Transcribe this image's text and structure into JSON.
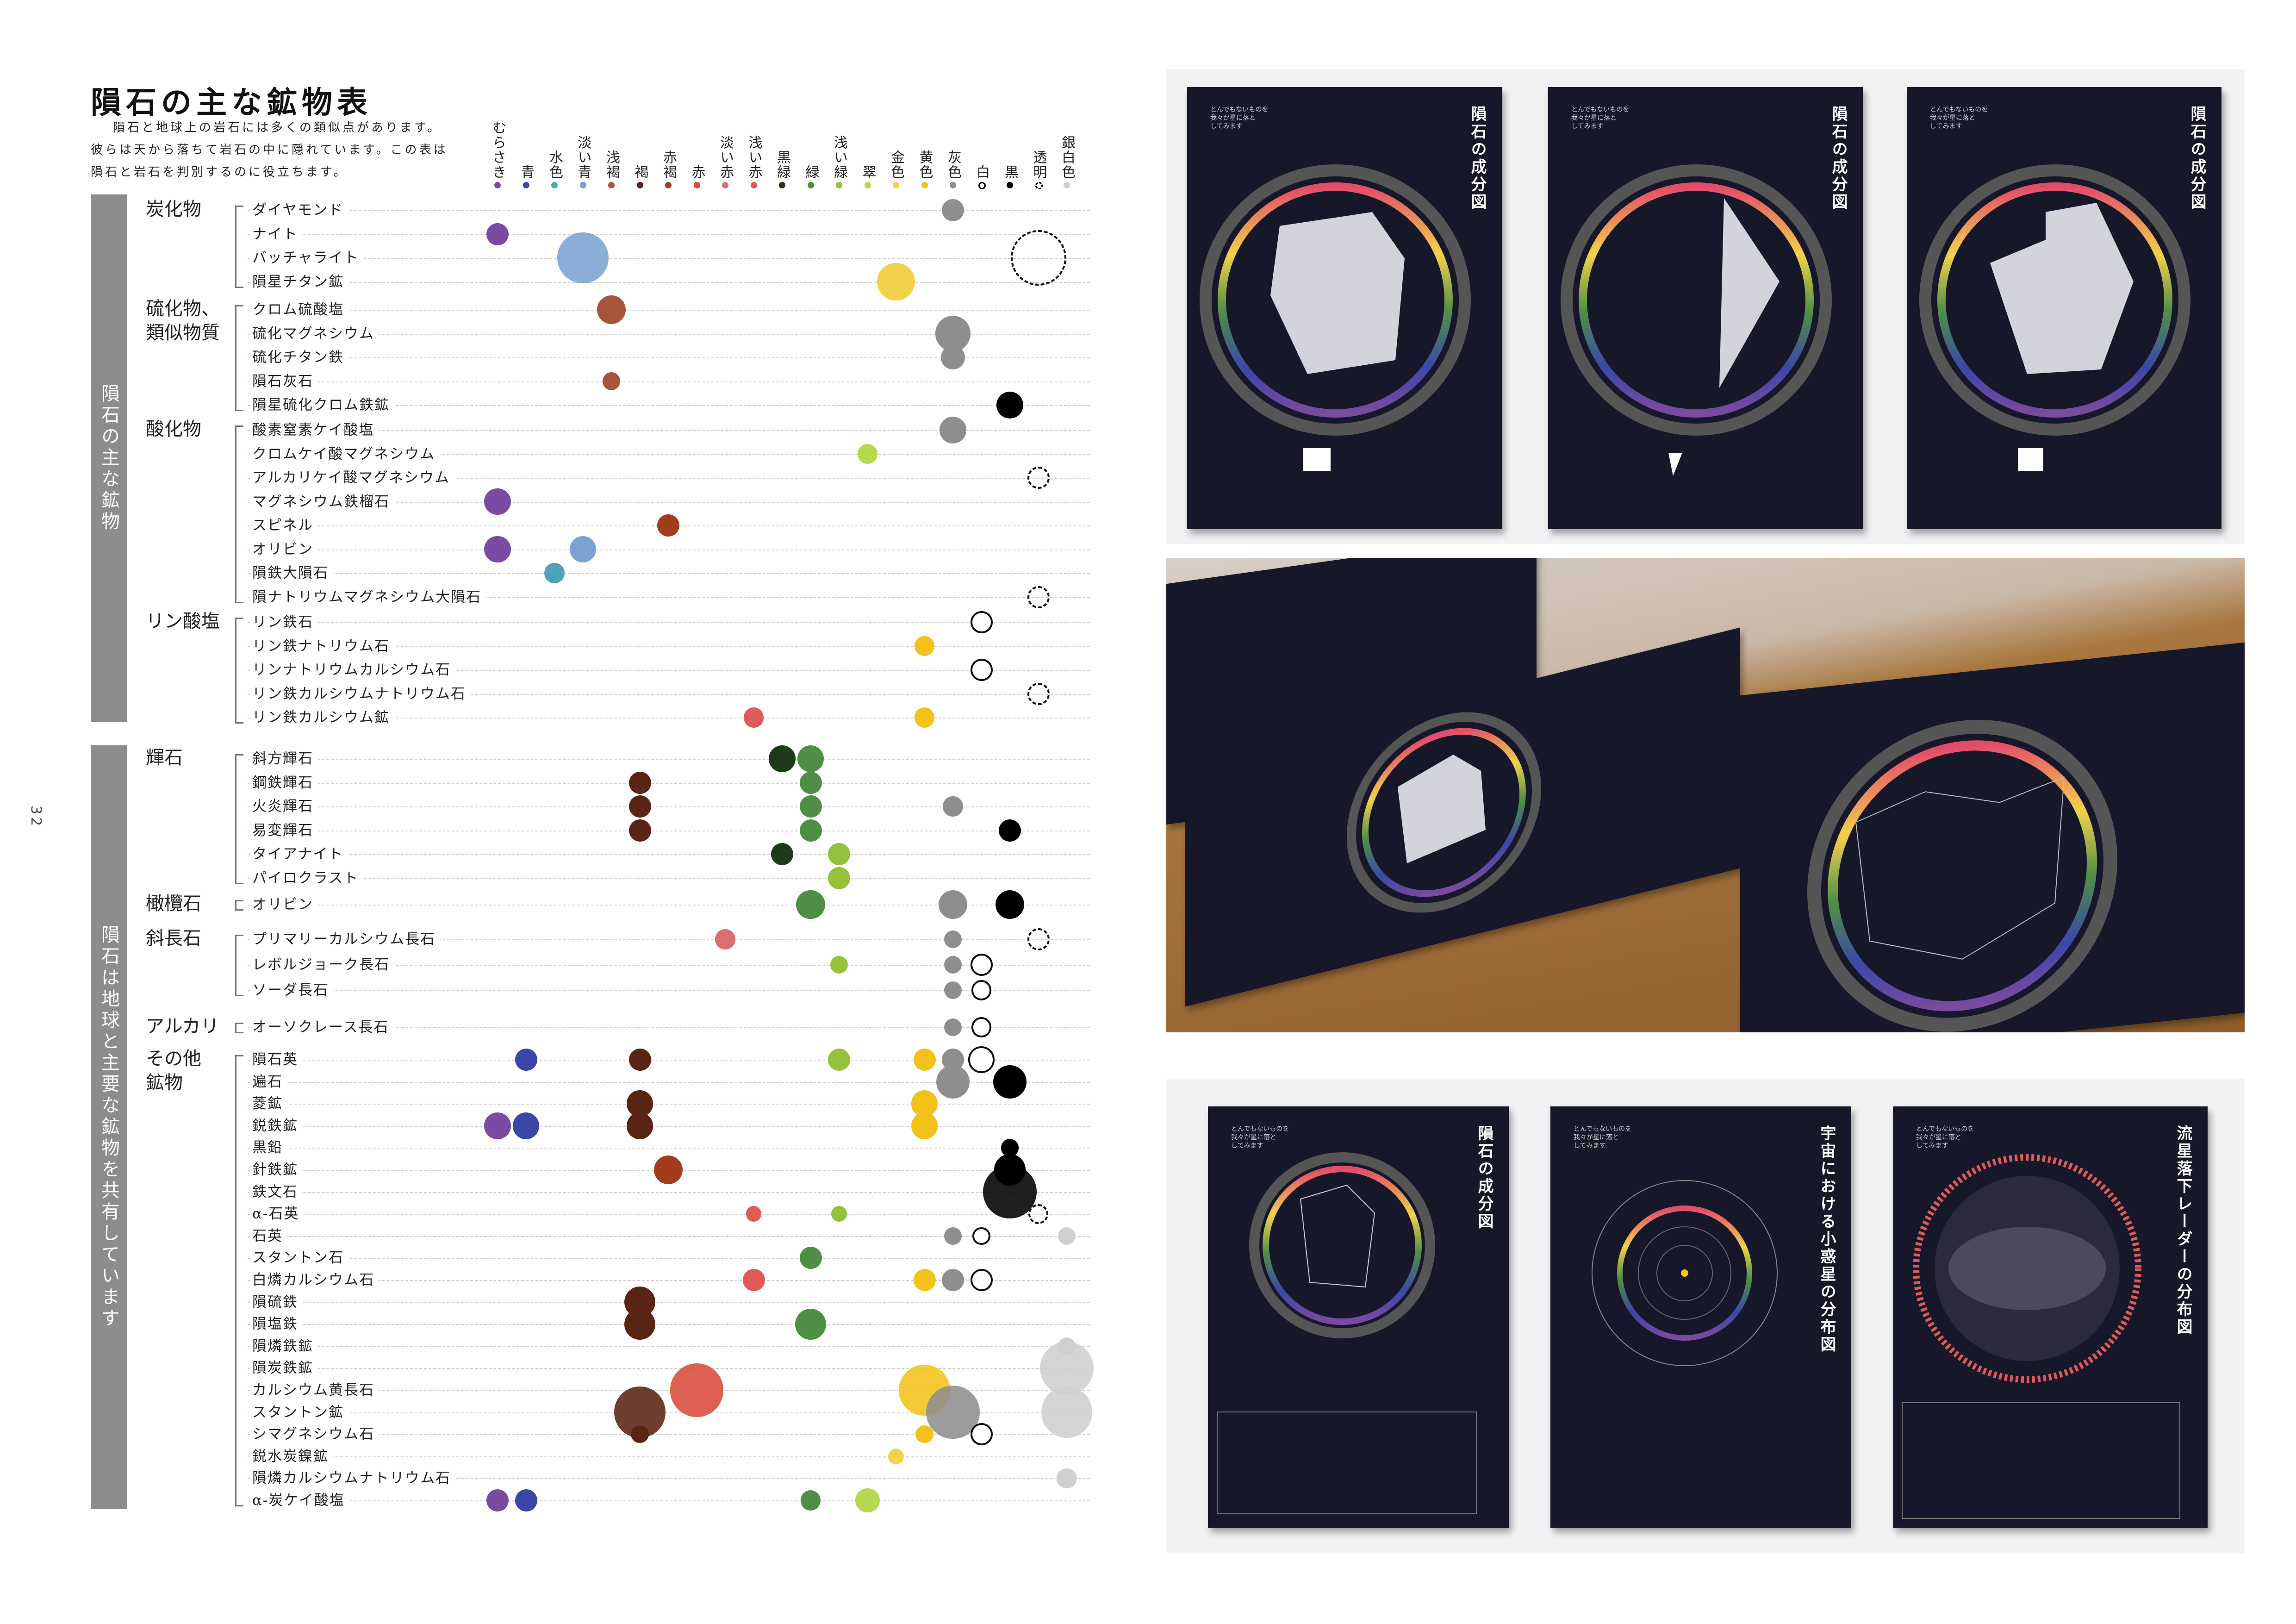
{
  "page": {
    "title": "隕石の主な鉱物表",
    "intro": "隕石と地球上の岩石には多くの類似点があります。彼らは天から落ちて岩石の中に隠れています。この表は隕石と岩石を判別するのに役立ちます。",
    "page_number": "32"
  },
  "side_labels": {
    "top": "隕石の主な鉱物",
    "bottom": "隕石は地球と主要な鉱物を共有しています"
  },
  "groups": [
    {
      "label": "炭化物"
    },
    {
      "label": "硫化物、\n類似物質"
    },
    {
      "label": "酸化物"
    },
    {
      "label": "リン酸塩"
    },
    {
      "label": "輝石"
    },
    {
      "label": "橄欖石"
    },
    {
      "label": "斜長石"
    },
    {
      "label": "アルカリ"
    },
    {
      "label": "その他\n鉱物"
    }
  ],
  "color_columns": [
    {
      "label": "むらさき",
      "color": "#7b4aa1"
    },
    {
      "label": "青",
      "color": "#3b47a8"
    },
    {
      "label": "水色",
      "color": "#4fa3b5"
    },
    {
      "label": "淡い青",
      "color": "#7aa3d1"
    },
    {
      "label": "浅褐",
      "color": "#a4553a"
    },
    {
      "label": "褐",
      "color": "#5a2414"
    },
    {
      "label": "赤褐",
      "color": "#a23c1f"
    },
    {
      "label": "赤",
      "color": "#d84a3a"
    },
    {
      "label": "淡い赤",
      "color": "#d9706f"
    },
    {
      "label": "浅い赤",
      "color": "#e05a5a"
    },
    {
      "label": "黒緑",
      "color": "#1f3a1a"
    },
    {
      "label": "緑",
      "color": "#4f8f45"
    },
    {
      "label": "浅い緑",
      "color": "#94c23a"
    },
    {
      "label": "翠",
      "color": "#b6d84e"
    },
    {
      "label": "金色",
      "color": "#f2d24a"
    },
    {
      "label": "黄色",
      "color": "#f2c21a"
    },
    {
      "label": "灰色",
      "color": "#8e8e8e"
    },
    {
      "label": "白",
      "color": "#ffffff"
    },
    {
      "label": "黒",
      "color": "#000000"
    },
    {
      "label": "透明",
      "color": "none"
    },
    {
      "label": "銀白色",
      "color": "#cfcfcf"
    }
  ],
  "rows": [
    {
      "name": "ダイヤモンド",
      "group": 0,
      "dots": [
        [
          16,
          1
        ]
      ]
    },
    {
      "name": "ナイト",
      "group": 0,
      "dots": [
        [
          0,
          1
        ]
      ]
    },
    {
      "name": "バッチャライト",
      "group": 0,
      "dots": [
        [
          3,
          2.3
        ],
        [
          19,
          2.5
        ]
      ]
    },
    {
      "name": "隕星チタン鉱",
      "group": 0,
      "dots": [
        [
          14,
          1.7
        ]
      ]
    },
    {
      "name": "クロム硫酸塩",
      "group": 1,
      "dots": [
        [
          4,
          1.3
        ]
      ]
    },
    {
      "name": "硫化マグネシウム",
      "group": 1,
      "dots": [
        [
          16,
          1.6
        ]
      ]
    },
    {
      "name": "硫化チタン鉄",
      "group": 1,
      "dots": [
        [
          16,
          1.1
        ]
      ]
    },
    {
      "name": "隕石灰石",
      "group": 1,
      "dots": [
        [
          4,
          0.8
        ]
      ]
    },
    {
      "name": "隕星硫化クロム鉄鉱",
      "group": 1,
      "dots": [
        [
          18,
          1.2
        ]
      ]
    },
    {
      "name": "酸素窒素ケイ酸塩",
      "group": 2,
      "dots": [
        [
          16,
          1.2
        ]
      ]
    },
    {
      "name": "クロムケイ酸マグネシウム",
      "group": 2,
      "dots": [
        [
          13,
          0.9
        ]
      ]
    },
    {
      "name": "アルカリケイ酸マグネシウム",
      "group": 2,
      "dots": [
        [
          19,
          1
        ]
      ]
    },
    {
      "name": "マグネシウム鉄榴石",
      "group": 2,
      "dots": [
        [
          0,
          1.2
        ]
      ]
    },
    {
      "name": "スピネル",
      "group": 2,
      "dots": [
        [
          6,
          1
        ]
      ]
    },
    {
      "name": "オリビン",
      "group": 2,
      "dots": [
        [
          0,
          1.2
        ],
        [
          3,
          1.2
        ]
      ]
    },
    {
      "name": "隕鉄大隕石",
      "group": 2,
      "dots": [
        [
          2,
          0.9
        ]
      ]
    },
    {
      "name": "隕ナトリウムマグネシウム大隕石",
      "group": 2,
      "dots": [
        [
          19,
          1
        ]
      ]
    },
    {
      "name": "リン鉄石",
      "group": 3,
      "dots": [
        [
          17,
          1
        ]
      ]
    },
    {
      "name": "リン鉄ナトリウム石",
      "group": 3,
      "dots": [
        [
          15,
          0.9
        ]
      ]
    },
    {
      "name": "リンナトリウムカルシウム石",
      "group": 3,
      "dots": [
        [
          17,
          1
        ]
      ]
    },
    {
      "name": "リン鉄カルシウムナトリウム石",
      "group": 3,
      "dots": [
        [
          19,
          1
        ]
      ]
    },
    {
      "name": "リン鉄カルシウム鉱",
      "group": 3,
      "dots": [
        [
          9,
          0.9
        ],
        [
          15,
          0.9
        ]
      ]
    },
    {
      "name": "斜方輝石",
      "group": 4,
      "dots": [
        [
          10,
          1.2
        ],
        [
          11,
          1.2
        ]
      ]
    },
    {
      "name": "鋼鉄輝石",
      "group": 4,
      "dots": [
        [
          5,
          1
        ],
        [
          11,
          1
        ]
      ]
    },
    {
      "name": "火炎輝石",
      "group": 4,
      "dots": [
        [
          5,
          1
        ],
        [
          11,
          1
        ],
        [
          16,
          0.9
        ]
      ]
    },
    {
      "name": "易変輝石",
      "group": 4,
      "dots": [
        [
          5,
          1
        ],
        [
          11,
          1
        ],
        [
          18,
          1
        ]
      ]
    },
    {
      "name": "タイアナイト",
      "group": 4,
      "dots": [
        [
          10,
          1
        ],
        [
          12,
          1
        ]
      ]
    },
    {
      "name": "パイロクラスト",
      "group": 4,
      "dots": [
        [
          12,
          1
        ]
      ]
    },
    {
      "name": "オリビン",
      "group": 5,
      "dots": [
        [
          11,
          1.3
        ],
        [
          16,
          1.3
        ],
        [
          18,
          1.3
        ]
      ]
    },
    {
      "name": "プリマリーカルシウム長石",
      "group": 6,
      "dots": [
        [
          8,
          0.9
        ],
        [
          16,
          0.8
        ],
        [
          19,
          1
        ]
      ]
    },
    {
      "name": "レボルジョーク長石",
      "group": 6,
      "dots": [
        [
          12,
          0.8
        ],
        [
          16,
          0.8
        ],
        [
          17,
          1
        ]
      ]
    },
    {
      "name": "ソーダ長石",
      "group": 6,
      "dots": [
        [
          16,
          0.8
        ],
        [
          17,
          0.9
        ]
      ]
    },
    {
      "name": "オーソクレース長石",
      "group": 7,
      "dots": [
        [
          16,
          0.8
        ],
        [
          17,
          0.9
        ]
      ]
    },
    {
      "name": "隕石英",
      "group": 8,
      "dots": [
        [
          1,
          1
        ],
        [
          5,
          1
        ],
        [
          12,
          1
        ],
        [
          15,
          1
        ],
        [
          16,
          1
        ],
        [
          17,
          1.2
        ]
      ]
    },
    {
      "name": "遍石",
      "group": 8,
      "dots": [
        [
          16,
          1.5
        ],
        [
          18,
          1.5
        ]
      ]
    },
    {
      "name": "菱鉱",
      "group": 8,
      "dots": [
        [
          5,
          1.2
        ],
        [
          15,
          1.2
        ]
      ]
    },
    {
      "name": "鋭鉄鉱",
      "group": 8,
      "dots": [
        [
          0,
          1.2
        ],
        [
          1,
          1.2
        ],
        [
          5,
          1.2
        ],
        [
          15,
          1.2
        ]
      ]
    },
    {
      "name": "黒鉛",
      "group": 8,
      "dots": [
        [
          18,
          0.8
        ]
      ]
    },
    {
      "name": "針鉄鉱",
      "group": 8,
      "dots": [
        [
          6,
          1.3
        ],
        [
          18,
          1.4
        ]
      ]
    },
    {
      "name": "鉄文石",
      "group": 8,
      "dots": [
        [
          18,
          2.4
        ]
      ]
    },
    {
      "name": "α-石英",
      "group": 8,
      "dots": [
        [
          9,
          0.7
        ],
        [
          12,
          0.7
        ],
        [
          19,
          0.9
        ]
      ]
    },
    {
      "name": "石英",
      "group": 8,
      "dots": [
        [
          16,
          0.8
        ],
        [
          17,
          0.8
        ],
        [
          20,
          0.8
        ]
      ]
    },
    {
      "name": "スタントン石",
      "group": 8,
      "dots": [
        [
          11,
          1
        ]
      ]
    },
    {
      "name": "白燐カルシウム石",
      "group": 8,
      "dots": [
        [
          9,
          1
        ],
        [
          15,
          1
        ],
        [
          16,
          1
        ],
        [
          17,
          1
        ]
      ]
    },
    {
      "name": "隕硫鉄",
      "group": 8,
      "dots": [
        [
          5,
          1.4
        ]
      ]
    },
    {
      "name": "隕塩鉄",
      "group": 8,
      "dots": [
        [
          5,
          1.4
        ],
        [
          11,
          1.4
        ]
      ]
    },
    {
      "name": "隕燐鉄鉱",
      "group": 8,
      "dots": [
        [
          20,
          0.8
        ]
      ]
    },
    {
      "name": "隕炭鉄鉱",
      "group": 8,
      "dots": [
        [
          20,
          2.4
        ]
      ]
    },
    {
      "name": "カルシウム黄長石",
      "group": 8,
      "dots": [
        [
          7,
          2.4
        ],
        [
          15,
          2.3
        ]
      ]
    },
    {
      "name": "スタントン鉱",
      "group": 8,
      "dots": [
        [
          5,
          2.3
        ],
        [
          16,
          2.4
        ],
        [
          20,
          2.3
        ]
      ]
    },
    {
      "name": "シマグネシウム石",
      "group": 8,
      "dots": [
        [
          5,
          0.8
        ],
        [
          15,
          0.8
        ],
        [
          17,
          1
        ]
      ]
    },
    {
      "name": "鋭水炭鎳鉱",
      "group": 8,
      "dots": [
        [
          14,
          0.7
        ]
      ]
    },
    {
      "name": "隕燐カルシウムナトリウム石",
      "group": 8,
      "dots": [
        [
          20,
          0.9
        ]
      ]
    },
    {
      "name": "α-炭ケイ酸塩",
      "group": 8,
      "dots": [
        [
          0,
          1
        ],
        [
          1,
          1
        ],
        [
          11,
          0.9
        ],
        [
          13,
          1.1
        ]
      ]
    }
  ],
  "posters": {
    "header": "とんでもないものを\n我々が星に落と\nしてみます",
    "title_components": "隕石の成分図",
    "title_asteroids": "宇宙における小惑星の分布図",
    "title_meteors": "流星落下レーダーの分布図"
  }
}
